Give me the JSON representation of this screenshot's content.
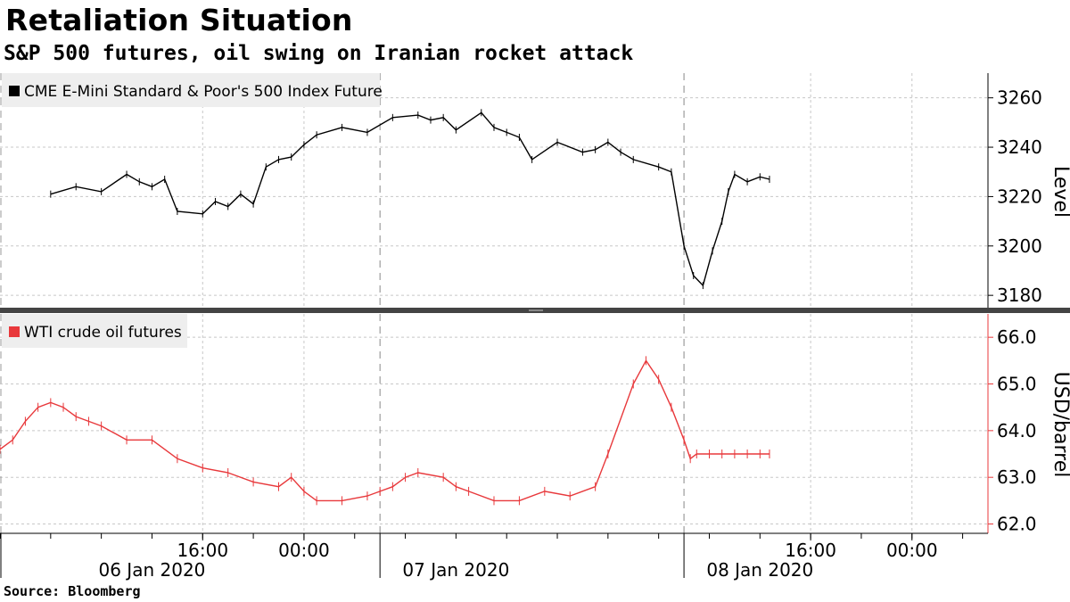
{
  "header": {
    "title": "Retaliation Situation",
    "subtitle": "S&P 500 futures, oil swing on Iranian rocket attack"
  },
  "footer": {
    "source": "Source: Bloomberg"
  },
  "colors": {
    "sp500": "#000000",
    "oil": "#e8383b",
    "grid": "#c8c8c8",
    "divider": "#444444",
    "legend_bg": "#eeeeee"
  },
  "chart_data": [
    {
      "type": "line",
      "style": "ohlc-bars",
      "series": [
        {
          "name": "CME E-Mini Standard & Poor's 500 Index Future",
          "x": [
            "2020-01-06 04:00",
            "2020-01-06 06:00",
            "2020-01-06 08:00",
            "2020-01-06 10:00",
            "2020-01-06 11:00",
            "2020-01-06 12:00",
            "2020-01-06 13:00",
            "2020-01-06 14:00",
            "2020-01-06 16:00",
            "2020-01-06 17:00",
            "2020-01-06 18:00",
            "2020-01-06 19:00",
            "2020-01-06 20:00",
            "2020-01-06 21:00",
            "2020-01-06 22:00",
            "2020-01-06 23:00",
            "2020-01-07 00:00",
            "2020-01-07 01:00",
            "2020-01-07 03:00",
            "2020-01-07 05:00",
            "2020-01-07 07:00",
            "2020-01-07 09:00",
            "2020-01-07 10:00",
            "2020-01-07 11:00",
            "2020-01-07 12:00",
            "2020-01-07 14:00",
            "2020-01-07 15:00",
            "2020-01-07 16:00",
            "2020-01-07 17:00",
            "2020-01-07 18:00",
            "2020-01-07 20:00",
            "2020-01-07 22:00",
            "2020-01-07 23:00",
            "2020-01-08 00:00",
            "2020-01-08 01:00",
            "2020-01-08 02:00",
            "2020-01-08 04:00",
            "2020-01-08 05:00",
            "2020-01-08 06:00",
            "2020-01-08 06:45",
            "2020-01-08 07:30",
            "2020-01-08 08:15",
            "2020-01-08 09:00",
            "2020-01-08 09:30",
            "2020-01-08 10:00",
            "2020-01-08 11:00",
            "2020-01-08 12:00",
            "2020-01-08 12:45"
          ],
          "values": [
            3221,
            3224,
            3222,
            3229,
            3226,
            3224,
            3227,
            3214,
            3213,
            3218,
            3216,
            3221,
            3217,
            3232,
            3235,
            3236,
            3241,
            3245,
            3248,
            3246,
            3252,
            3253,
            3251,
            3252,
            3247,
            3254,
            3248,
            3246,
            3244,
            3235,
            3242,
            3238,
            3239,
            3242,
            3238,
            3235,
            3232,
            3230,
            3200,
            3188,
            3184,
            3198,
            3210,
            3222,
            3229,
            3226,
            3228,
            3227
          ]
        }
      ],
      "xlim": [
        "2020-01-06 00:00",
        "2020-01-09 06:00"
      ],
      "ylim": [
        3175,
        3270
      ],
      "yticks": [
        3180,
        3200,
        3220,
        3240,
        3260
      ],
      "ylabel": "Level",
      "axis_side": "right",
      "legend_placement": "top-left",
      "grid": true
    },
    {
      "type": "line",
      "style": "ohlc-bars",
      "series": [
        {
          "name": "WTI crude oil futures",
          "x": [
            "2020-01-06 00:00",
            "2020-01-06 01:00",
            "2020-01-06 02:00",
            "2020-01-06 03:00",
            "2020-01-06 04:00",
            "2020-01-06 05:00",
            "2020-01-06 06:00",
            "2020-01-06 07:00",
            "2020-01-06 08:00",
            "2020-01-06 10:00",
            "2020-01-06 12:00",
            "2020-01-06 14:00",
            "2020-01-06 16:00",
            "2020-01-06 18:00",
            "2020-01-06 20:00",
            "2020-01-06 22:00",
            "2020-01-06 23:00",
            "2020-01-07 00:00",
            "2020-01-07 01:00",
            "2020-01-07 03:00",
            "2020-01-07 05:00",
            "2020-01-07 06:00",
            "2020-01-07 07:00",
            "2020-01-07 08:00",
            "2020-01-07 09:00",
            "2020-01-07 11:00",
            "2020-01-07 12:00",
            "2020-01-07 13:00",
            "2020-01-07 15:00",
            "2020-01-07 17:00",
            "2020-01-07 19:00",
            "2020-01-07 21:00",
            "2020-01-07 23:00",
            "2020-01-08 00:00",
            "2020-01-08 02:00",
            "2020-01-08 03:00",
            "2020-01-08 04:00",
            "2020-01-08 05:00",
            "2020-01-08 06:00",
            "2020-01-08 06:30",
            "2020-01-08 07:00",
            "2020-01-08 08:00",
            "2020-01-08 09:00",
            "2020-01-08 10:00",
            "2020-01-08 11:00",
            "2020-01-08 12:00",
            "2020-01-08 12:45"
          ],
          "values": [
            63.6,
            63.8,
            64.2,
            64.5,
            64.6,
            64.5,
            64.3,
            64.2,
            64.1,
            63.8,
            63.8,
            63.4,
            63.2,
            63.1,
            62.9,
            62.8,
            63.0,
            62.7,
            62.5,
            62.5,
            62.6,
            62.7,
            62.8,
            63.0,
            63.1,
            63.0,
            62.8,
            62.7,
            62.5,
            62.5,
            62.7,
            62.6,
            62.8,
            63.5,
            65.0,
            65.5,
            65.1,
            64.5,
            63.8,
            63.4,
            63.5,
            63.5,
            63.5,
            63.5,
            63.5,
            63.5,
            63.5
          ]
        }
      ],
      "xlim": [
        "2020-01-06 00:00",
        "2020-01-09 06:00"
      ],
      "ylim": [
        61.8,
        66.5
      ],
      "yticks": [
        62.0,
        63.0,
        64.0,
        65.0,
        66.0
      ],
      "ytick_labels": [
        "62.0",
        "63.0",
        "64.0",
        "65.0",
        "66.0"
      ],
      "ylabel": "USD/barrel",
      "axis_side": "right",
      "legend_placement": "top-left",
      "grid": true
    }
  ],
  "x_axis": {
    "time_ticks": [
      {
        "t": "2020-01-06 16:00",
        "label": "16:00"
      },
      {
        "t": "2020-01-07 00:00",
        "label": "00:00"
      },
      {
        "t": "2020-01-08 16:00",
        "label": "16:00"
      },
      {
        "t": "2020-01-09 00:00",
        "label": "00:00"
      }
    ],
    "day_labels": [
      {
        "t": "2020-01-06 12:00",
        "label": "06 Jan 2020"
      },
      {
        "t": "2020-01-07 12:00",
        "label": "07 Jan 2020"
      },
      {
        "t": "2020-01-08 12:00",
        "label": "08 Jan 2020"
      }
    ],
    "day_boundaries": [
      "2020-01-07 06:00",
      "2020-01-08 06:00"
    ]
  }
}
